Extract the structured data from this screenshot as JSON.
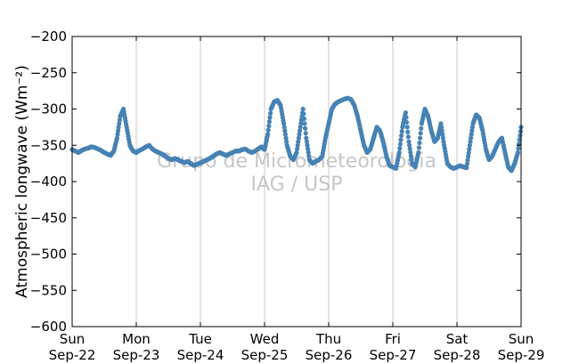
{
  "chart_data": {
    "type": "scatter",
    "title": "",
    "xlabel": "",
    "ylabel": "Atmospheric longwave",
    "ylabel_unit": "(Wm⁻²)",
    "ylim": [
      -600,
      -200
    ],
    "yticks": [
      -200,
      -250,
      -300,
      -350,
      -400,
      -450,
      -500,
      -550,
      -600
    ],
    "yticklabels": [
      "−200",
      "−250",
      "−300",
      "−350",
      "−400",
      "−450",
      "−500",
      "−550",
      "−600"
    ],
    "xlim": [
      0,
      7
    ],
    "xticks": [
      {
        "day": "Sun",
        "date": "Sep-22"
      },
      {
        "day": "Mon",
        "date": "Sep-23"
      },
      {
        "day": "Tue",
        "date": "Sep-24"
      },
      {
        "day": "Wed",
        "date": "Sep-25"
      },
      {
        "day": "Thu",
        "date": "Sep-26"
      },
      {
        "day": "Fri",
        "date": "Sep-27"
      },
      {
        "day": "Sat",
        "date": "Sep-28"
      },
      {
        "day": "Sun",
        "date": "Sep-29"
      }
    ],
    "grid": "vertical",
    "color": "#4682b4",
    "watermark": [
      "Grupo de Micrometeorologia",
      "IAG / USP"
    ],
    "series": [
      {
        "x": [
          0.0,
          0.05,
          0.1,
          0.15,
          0.2,
          0.25,
          0.3,
          0.35,
          0.4,
          0.45,
          0.5,
          0.55,
          0.6,
          0.65,
          0.7,
          0.75,
          0.8,
          0.85,
          0.9,
          0.95,
          1.0,
          1.05,
          1.1,
          1.15,
          1.2,
          1.25,
          1.3,
          1.35,
          1.4,
          1.45,
          1.5,
          1.55,
          1.6,
          1.65,
          1.7,
          1.75,
          1.8,
          1.85,
          1.9,
          1.95,
          2.0,
          2.05,
          2.1,
          2.15,
          2.2,
          2.25,
          2.3,
          2.35,
          2.4,
          2.45,
          2.5,
          2.55,
          2.6,
          2.65,
          2.7,
          2.75,
          2.8,
          2.85,
          2.9,
          2.95,
          3.0,
          3.05,
          3.1,
          3.15,
          3.2,
          3.25,
          3.3,
          3.35,
          3.4,
          3.45,
          3.5,
          3.55,
          3.6,
          3.65,
          3.7,
          3.75,
          3.8,
          3.85,
          3.9,
          3.95,
          4.0,
          4.05,
          4.1,
          4.15,
          4.2,
          4.25,
          4.3,
          4.35,
          4.4,
          4.45,
          4.5,
          4.55,
          4.6,
          4.65,
          4.7,
          4.75,
          4.8,
          4.85,
          4.9,
          4.95,
          5.0,
          5.05,
          5.1,
          5.15,
          5.2,
          5.25,
          5.3,
          5.35,
          5.4,
          5.45,
          5.5,
          5.55,
          5.6,
          5.65,
          5.7,
          5.75,
          5.8,
          5.85,
          5.9,
          5.95,
          6.0,
          6.05,
          6.1,
          6.15,
          6.2,
          6.25,
          6.3,
          6.35,
          6.4,
          6.45,
          6.5,
          6.55,
          6.6,
          6.65,
          6.7,
          6.75,
          6.8,
          6.85,
          6.9,
          6.95,
          7.0
        ],
        "y": [
          -356,
          -358,
          -360,
          -357,
          -355,
          -354,
          -352,
          -353,
          -355,
          -357,
          -360,
          -362,
          -364,
          -358,
          -340,
          -310,
          -300,
          -325,
          -350,
          -358,
          -360,
          -357,
          -355,
          -352,
          -350,
          -355,
          -358,
          -360,
          -362,
          -365,
          -368,
          -370,
          -368,
          -370,
          -372,
          -374,
          -372,
          -375,
          -378,
          -376,
          -374,
          -372,
          -370,
          -368,
          -365,
          -362,
          -360,
          -362,
          -364,
          -362,
          -360,
          -358,
          -358,
          -356,
          -355,
          -358,
          -360,
          -358,
          -355,
          -352,
          -356,
          -335,
          -300,
          -290,
          -288,
          -295,
          -320,
          -350,
          -365,
          -370,
          -360,
          -330,
          -300,
          -340,
          -370,
          -375,
          -372,
          -370,
          -365,
          -340,
          -320,
          -300,
          -293,
          -290,
          -288,
          -286,
          -285,
          -287,
          -295,
          -310,
          -330,
          -350,
          -360,
          -355,
          -340,
          -325,
          -330,
          -345,
          -365,
          -378,
          -380,
          -382,
          -360,
          -325,
          -305,
          -345,
          -375,
          -380,
          -360,
          -320,
          -300,
          -310,
          -330,
          -345,
          -340,
          -320,
          -350,
          -375,
          -380,
          -382,
          -380,
          -378,
          -380,
          -381,
          -350,
          -320,
          -308,
          -312,
          -330,
          -355,
          -370,
          -365,
          -355,
          -345,
          -340,
          -360,
          -380,
          -385,
          -375,
          -360,
          -325
        ]
      }
    ]
  }
}
